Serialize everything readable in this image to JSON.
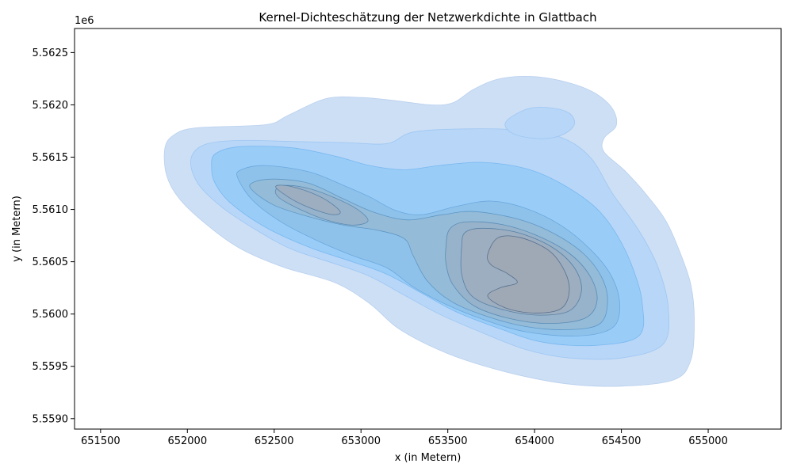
{
  "chart_data": {
    "type": "kde-contour",
    "title": "Kernel-Dichteschätzung der Netzwerkdichte in Glattbach",
    "xlabel": "x (in Metern)",
    "ylabel": "y (in Metern)",
    "y_offset_label": "1e6",
    "xlim": [
      651350,
      655420
    ],
    "ylim": [
      5558900,
      5562730
    ],
    "x_ticks": [
      651500,
      652000,
      652500,
      653000,
      653500,
      654000,
      654500,
      655000
    ],
    "x_tick_labels": [
      "651500",
      "652000",
      "652500",
      "653000",
      "653500",
      "654000",
      "654500",
      "655000"
    ],
    "y_ticks": [
      5559000,
      5559500,
      5560000,
      5560500,
      5561000,
      5561500,
      5562000,
      5562500
    ],
    "y_tick_labels": [
      "5.5590",
      "5.5595",
      "5.5600",
      "5.5605",
      "5.5610",
      "5.5615",
      "5.5620",
      "5.5625"
    ],
    "grid": false,
    "levels": [
      {
        "level": 1,
        "fill": "#cddff5",
        "stroke": "#b9d0ee",
        "opacity": 1,
        "polygons": [
          [
            [
              651870,
              5561580
            ],
            [
              651920,
              5561710
            ],
            [
              652050,
              5561780
            ],
            [
              652450,
              5561810
            ],
            [
              652580,
              5561900
            ],
            [
              652800,
              5562060
            ],
            [
              653000,
              5562070
            ],
            [
              653200,
              5562040
            ],
            [
              653400,
              5562000
            ],
            [
              653530,
              5562020
            ],
            [
              653650,
              5562150
            ],
            [
              653800,
              5562250
            ],
            [
              654000,
              5562270
            ],
            [
              654200,
              5562210
            ],
            [
              654350,
              5562110
            ],
            [
              654450,
              5561960
            ],
            [
              654470,
              5561800
            ],
            [
              654400,
              5561680
            ],
            [
              654400,
              5561550
            ],
            [
              654520,
              5561370
            ],
            [
              654650,
              5561130
            ],
            [
              654760,
              5560880
            ],
            [
              654840,
              5560580
            ],
            [
              654900,
              5560280
            ],
            [
              654920,
              5559950
            ],
            [
              654900,
              5559560
            ],
            [
              654800,
              5559370
            ],
            [
              654500,
              5559310
            ],
            [
              654200,
              5559330
            ],
            [
              653900,
              5559420
            ],
            [
              653600,
              5559560
            ],
            [
              653380,
              5559710
            ],
            [
              653200,
              5559880
            ],
            [
              653050,
              5560100
            ],
            [
              652850,
              5560300
            ],
            [
              652550,
              5560450
            ],
            [
              652300,
              5560630
            ],
            [
              652100,
              5560870
            ],
            [
              651950,
              5561110
            ],
            [
              651880,
              5561330
            ]
          ]
        ]
      },
      {
        "level": 2,
        "fill": "#b7d6f8",
        "stroke": "#9fc7f2",
        "opacity": 1,
        "polygons": [
          [
            [
              652020,
              5561480
            ],
            [
              652100,
              5561620
            ],
            [
              652300,
              5561660
            ],
            [
              652600,
              5561650
            ],
            [
              652900,
              5561640
            ],
            [
              653150,
              5561630
            ],
            [
              653300,
              5561740
            ],
            [
              653600,
              5561770
            ],
            [
              653900,
              5561760
            ],
            [
              654150,
              5561690
            ],
            [
              654320,
              5561500
            ],
            [
              654450,
              5561150
            ],
            [
              654600,
              5560800
            ],
            [
              654710,
              5560450
            ],
            [
              654770,
              5560060
            ],
            [
              654740,
              5559710
            ],
            [
              654500,
              5559580
            ],
            [
              654200,
              5559580
            ],
            [
              653950,
              5559660
            ],
            [
              653700,
              5559820
            ],
            [
              653450,
              5560000
            ],
            [
              653250,
              5560180
            ],
            [
              653050,
              5560360
            ],
            [
              652850,
              5560480
            ],
            [
              652600,
              5560620
            ],
            [
              652400,
              5560800
            ],
            [
              652200,
              5561020
            ],
            [
              652060,
              5561250
            ]
          ],
          [
            [
              653830,
              5561820
            ],
            [
              653880,
              5561900
            ],
            [
              653980,
              5561970
            ],
            [
              654100,
              5561970
            ],
            [
              654200,
              5561920
            ],
            [
              654230,
              5561820
            ],
            [
              654180,
              5561730
            ],
            [
              654080,
              5561680
            ],
            [
              653950,
              5561690
            ],
            [
              653860,
              5561740
            ]
          ]
        ]
      },
      {
        "level": 3,
        "fill": "#99cdf8",
        "stroke": "#7ab8ef",
        "opacity": 1,
        "polygons": [
          [
            [
              652140,
              5561400
            ],
            [
              652160,
              5561530
            ],
            [
              652300,
              5561600
            ],
            [
              652600,
              5561590
            ],
            [
              652850,
              5561510
            ],
            [
              653050,
              5561420
            ],
            [
              653250,
              5561380
            ],
            [
              653450,
              5561420
            ],
            [
              653700,
              5561450
            ],
            [
              653950,
              5561390
            ],
            [
              654150,
              5561250
            ],
            [
              654350,
              5561020
            ],
            [
              654480,
              5560740
            ],
            [
              654570,
              5560420
            ],
            [
              654620,
              5560100
            ],
            [
              654600,
              5559790
            ],
            [
              654350,
              5559700
            ],
            [
              654050,
              5559730
            ],
            [
              653800,
              5559860
            ],
            [
              653550,
              5560020
            ],
            [
              653350,
              5560200
            ],
            [
              653150,
              5560380
            ],
            [
              652950,
              5560500
            ],
            [
              652700,
              5560640
            ],
            [
              652450,
              5560830
            ],
            [
              652250,
              5561060
            ],
            [
              652160,
              5561250
            ]
          ]
        ]
      },
      {
        "level": 4,
        "fill": "#8fc2ea",
        "stroke": "#6aa8de",
        "opacity": 1,
        "polygons": [
          [
            [
              652290,
              5561300
            ],
            [
              652310,
              5561380
            ],
            [
              652450,
              5561420
            ],
            [
              652700,
              5561360
            ],
            [
              652900,
              5561230
            ],
            [
              653050,
              5561120
            ],
            [
              653200,
              5560990
            ],
            [
              653350,
              5560950
            ],
            [
              653550,
              5561030
            ],
            [
              653750,
              5561080
            ],
            [
              653950,
              5561010
            ],
            [
              654150,
              5560850
            ],
            [
              654320,
              5560620
            ],
            [
              654440,
              5560370
            ],
            [
              654490,
              5560100
            ],
            [
              654450,
              5559870
            ],
            [
              654250,
              5559790
            ],
            [
              653950,
              5559830
            ],
            [
              653700,
              5559950
            ],
            [
              653480,
              5560100
            ],
            [
              653300,
              5560260
            ],
            [
              653150,
              5560440
            ],
            [
              652950,
              5560560
            ],
            [
              652750,
              5560700
            ],
            [
              652550,
              5560870
            ],
            [
              652380,
              5561080
            ]
          ]
        ]
      },
      {
        "level": 5,
        "fill": "#94bbd8",
        "stroke": "#5e98c6",
        "opacity": 1,
        "polygons": [
          [
            [
              652370,
              5561190
            ],
            [
              652380,
              5561260
            ],
            [
              652500,
              5561290
            ],
            [
              652700,
              5561250
            ],
            [
              652900,
              5561100
            ],
            [
              653080,
              5560970
            ],
            [
              653270,
              5560900
            ],
            [
              653470,
              5560950
            ],
            [
              653650,
              5560980
            ],
            [
              653900,
              5560910
            ],
            [
              654100,
              5560780
            ],
            [
              654280,
              5560580
            ],
            [
              654390,
              5560340
            ],
            [
              654420,
              5560100
            ],
            [
              654370,
              5559900
            ],
            [
              654180,
              5559850
            ],
            [
              653950,
              5559880
            ],
            [
              653720,
              5559980
            ],
            [
              653520,
              5560120
            ],
            [
              653380,
              5560320
            ],
            [
              653300,
              5560560
            ],
            [
              653250,
              5560720
            ],
            [
              653100,
              5560800
            ],
            [
              652900,
              5560850
            ],
            [
              652700,
              5560930
            ],
            [
              652500,
              5561040
            ]
          ]
        ]
      },
      {
        "level": 6,
        "fill": "#97b3cb",
        "stroke": "#5a8cb5",
        "opacity": 1,
        "polygons": [
          [
            [
              652510,
              5561190
            ],
            [
              652570,
              5561230
            ],
            [
              652700,
              5561200
            ],
            [
              652850,
              5561110
            ],
            [
              652980,
              5561000
            ],
            [
              653040,
              5560890
            ],
            [
              652950,
              5560850
            ],
            [
              652800,
              5560900
            ],
            [
              652650,
              5561000
            ],
            [
              652530,
              5561110
            ]
          ],
          [
            [
              653490,
              5560650
            ],
            [
              653510,
              5560810
            ],
            [
              653600,
              5560880
            ],
            [
              653800,
              5560860
            ],
            [
              654000,
              5560760
            ],
            [
              654200,
              5560580
            ],
            [
              654320,
              5560360
            ],
            [
              654360,
              5560130
            ],
            [
              654290,
              5559960
            ],
            [
              654080,
              5559910
            ],
            [
              653850,
              5559960
            ],
            [
              653650,
              5560080
            ],
            [
              653530,
              5560280
            ],
            [
              653490,
              5560480
            ]
          ]
        ]
      },
      {
        "level": 7,
        "fill": "#9caec0",
        "stroke": "#5880a6",
        "opacity": 1,
        "polygons": [
          [
            [
              652510,
              5561210
            ],
            [
              652560,
              5561230
            ],
            [
              652680,
              5561180
            ],
            [
              652800,
              5561090
            ],
            [
              652880,
              5560980
            ],
            [
              652840,
              5560950
            ],
            [
              652730,
              5561000
            ],
            [
              652610,
              5561090
            ]
          ],
          [
            [
              653580,
              5560650
            ],
            [
              653600,
              5560780
            ],
            [
              653700,
              5560820
            ],
            [
              653900,
              5560780
            ],
            [
              654100,
              5560640
            ],
            [
              654230,
              5560440
            ],
            [
              654270,
              5560220
            ],
            [
              654200,
              5560030
            ],
            [
              654010,
              5559990
            ],
            [
              653800,
              5560050
            ],
            [
              653640,
              5560170
            ],
            [
              653580,
              5560380
            ]
          ]
        ]
      },
      {
        "level": 8,
        "fill": "#9fa9b6",
        "stroke": "#57708e",
        "opacity": 1,
        "polygons": [
          [
            [
              653730,
              5560570
            ],
            [
              653790,
              5560730
            ],
            [
              653920,
              5560730
            ],
            [
              654080,
              5560610
            ],
            [
              654170,
              5560420
            ],
            [
              654200,
              5560220
            ],
            [
              654150,
              5560050
            ],
            [
              653990,
              5560010
            ],
            [
              653830,
              5560060
            ],
            [
              653730,
              5560170
            ],
            [
              653800,
              5560250
            ],
            [
              653900,
              5560300
            ],
            [
              653840,
              5560390
            ],
            [
              653750,
              5560470
            ]
          ]
        ]
      }
    ]
  }
}
